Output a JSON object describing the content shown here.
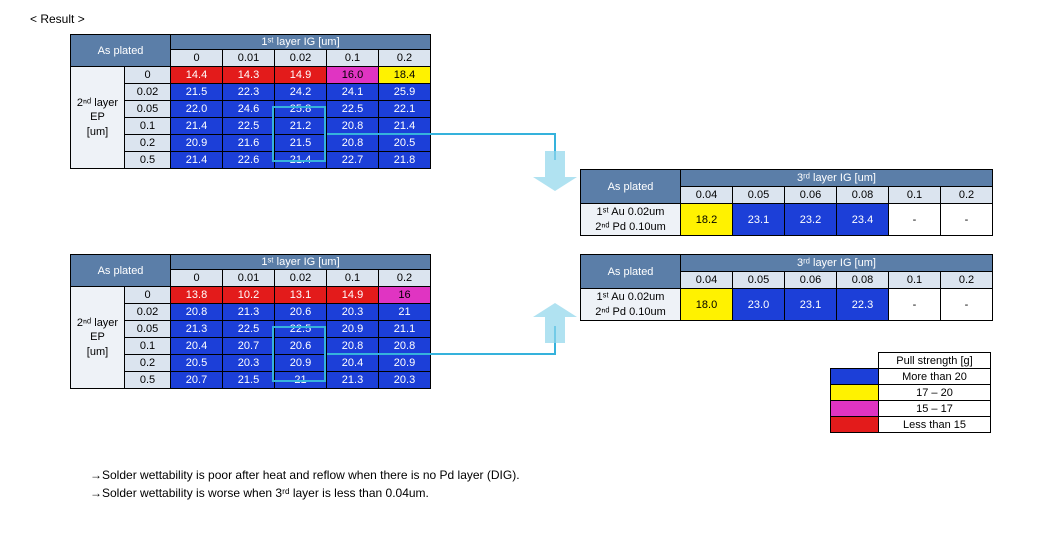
{
  "title": "< Result >",
  "header_1st": "1ˢᵗ layer IG [um]",
  "header_3rd": "3ʳᵈ layer IG [um]",
  "as_plated": "As plated",
  "ep_label_html": "2ⁿᵈ layer<br>EP<br>[um]",
  "pd_label_html": "1ˢᵗ Au 0.02um<br>2ⁿᵈ Pd 0.10um",
  "cols_main": [
    "0",
    "0.01",
    "0.02",
    "0.1",
    "0.2"
  ],
  "cols_3rd": [
    "0.04",
    "0.05",
    "0.06",
    "0.08",
    "0.1",
    "0.2"
  ],
  "rows_main": [
    "0",
    "0.02",
    "0.05",
    "0.1",
    "0.2",
    "0.5"
  ],
  "table1": [
    [
      [
        "14.4",
        "red"
      ],
      [
        "14.3",
        "red"
      ],
      [
        "14.9",
        "red"
      ],
      [
        "16.0",
        "mag"
      ],
      [
        "18.4",
        "yel"
      ]
    ],
    [
      [
        "21.5",
        "blue"
      ],
      [
        "22.3",
        "blue"
      ],
      [
        "24.2",
        "blue"
      ],
      [
        "24.1",
        "blue"
      ],
      [
        "25.9",
        "blue"
      ]
    ],
    [
      [
        "22.0",
        "blue"
      ],
      [
        "24.6",
        "blue"
      ],
      [
        "25.8",
        "blue"
      ],
      [
        "22.5",
        "blue"
      ],
      [
        "22.1",
        "blue"
      ]
    ],
    [
      [
        "21.4",
        "blue"
      ],
      [
        "22.5",
        "blue"
      ],
      [
        "21.2",
        "blue"
      ],
      [
        "20.8",
        "blue"
      ],
      [
        "21.4",
        "blue"
      ]
    ],
    [
      [
        "20.9",
        "blue"
      ],
      [
        "21.6",
        "blue"
      ],
      [
        "21.5",
        "blue"
      ],
      [
        "20.8",
        "blue"
      ],
      [
        "20.5",
        "blue"
      ]
    ],
    [
      [
        "21.4",
        "blue"
      ],
      [
        "22.6",
        "blue"
      ],
      [
        "21.4",
        "blue"
      ],
      [
        "22.7",
        "blue"
      ],
      [
        "21.8",
        "blue"
      ]
    ]
  ],
  "table2": [
    [
      [
        "13.8",
        "red"
      ],
      [
        "10.2",
        "red"
      ],
      [
        "13.1",
        "red"
      ],
      [
        "14.9",
        "red"
      ],
      [
        "16",
        "mag"
      ]
    ],
    [
      [
        "20.8",
        "blue"
      ],
      [
        "21.3",
        "blue"
      ],
      [
        "20.6",
        "blue"
      ],
      [
        "20.3",
        "blue"
      ],
      [
        "21",
        "blue"
      ]
    ],
    [
      [
        "21.3",
        "blue"
      ],
      [
        "22.5",
        "blue"
      ],
      [
        "22.5",
        "blue"
      ],
      [
        "20.9",
        "blue"
      ],
      [
        "21.1",
        "blue"
      ]
    ],
    [
      [
        "20.4",
        "blue"
      ],
      [
        "20.7",
        "blue"
      ],
      [
        "20.6",
        "blue"
      ],
      [
        "20.8",
        "blue"
      ],
      [
        "20.8",
        "blue"
      ]
    ],
    [
      [
        "20.5",
        "blue"
      ],
      [
        "20.3",
        "blue"
      ],
      [
        "20.9",
        "blue"
      ],
      [
        "20.4",
        "blue"
      ],
      [
        "20.9",
        "blue"
      ]
    ],
    [
      [
        "20.7",
        "blue"
      ],
      [
        "21.5",
        "blue"
      ],
      [
        "21",
        "blue"
      ],
      [
        "21.3",
        "blue"
      ],
      [
        "20.3",
        "blue"
      ]
    ]
  ],
  "table3": [
    [
      "18.2",
      "yel"
    ],
    [
      "23.1",
      "blue"
    ],
    [
      "23.2",
      "blue"
    ],
    [
      "23.4",
      "blue"
    ],
    [
      "-",
      "none"
    ],
    [
      "-",
      "none"
    ]
  ],
  "table4": [
    [
      "18.0",
      "yel"
    ],
    [
      "23.0",
      "blue"
    ],
    [
      "23.1",
      "blue"
    ],
    [
      "22.3",
      "blue"
    ],
    [
      "-",
      "none"
    ],
    [
      "-",
      "none"
    ]
  ],
  "legend_title": "Pull strength [g]",
  "legend": [
    [
      "blue",
      "More than 20"
    ],
    [
      "yel",
      "17 – 20"
    ],
    [
      "mag",
      "15 – 17"
    ],
    [
      "red",
      "Less than 15"
    ]
  ],
  "bullets": [
    "→Solder wettability is poor after heat and reflow when there is no Pd layer (DIG).",
    "→Solder wettability is worse when 3ʳᵈ layer is less than 0.04um."
  ],
  "colors": {
    "blue": "#1c3fd8",
    "red": "#e31b1b",
    "yel": "#fff200",
    "mag": "#e034c2",
    "none": "#ffffff",
    "header": "#5b7ea8",
    "arrow": "#8fd5eb",
    "arrow_border": "#35b2dc"
  }
}
